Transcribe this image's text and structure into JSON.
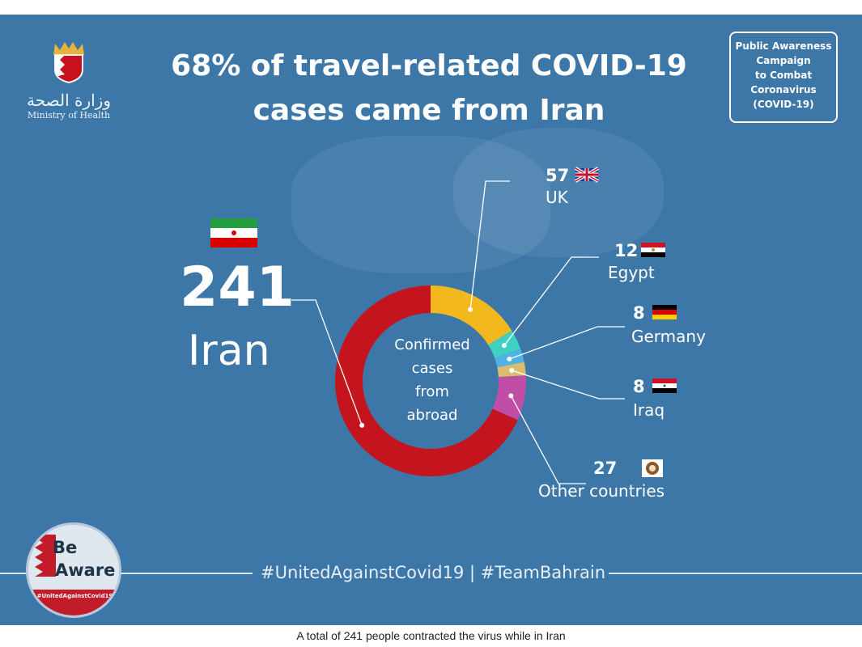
{
  "header": {
    "ministry_ar": "وزارة الصحة",
    "ministry_en": "Ministry of Health",
    "title_line1": "68% of travel-related COVID-19",
    "title_line2": "cases came from Iran",
    "campaign_lines": [
      "Public Awareness",
      "Campaign",
      "to Combat",
      "Coronavirus",
      "(COVID-19)"
    ]
  },
  "chart_data": {
    "type": "pie",
    "donut": true,
    "center_label_lines": [
      "Confirmed",
      "cases",
      "from",
      "abroad"
    ],
    "slices": [
      {
        "name": "UK",
        "value": 57,
        "color": "#f4b81f",
        "flag": "uk-flag"
      },
      {
        "name": "Egypt",
        "value": 12,
        "color": "#3fd0c2",
        "flag": "egypt-flag"
      },
      {
        "name": "Germany",
        "value": 8,
        "color": "#4fb2e6",
        "flag": "germany-flag"
      },
      {
        "name": "Iraq",
        "value": 8,
        "color": "#d9bd6e",
        "flag": "iraq-flag"
      },
      {
        "name": "Other countries",
        "value": 27,
        "color": "#c04ea6",
        "flag": "gcc-emblem"
      },
      {
        "name": "Iran",
        "value": 241,
        "color": "#c4151f",
        "flag": "iran-flag"
      }
    ]
  },
  "footer": {
    "hashtags": "#UnitedAgainstCovid19 | #TeamBahrain",
    "badge_line1": "Be",
    "badge_line2": "Aware",
    "badge_tag": "#UnitedAgainstCovid19"
  },
  "caption": "A total of 241 people contracted the virus while in Iran"
}
